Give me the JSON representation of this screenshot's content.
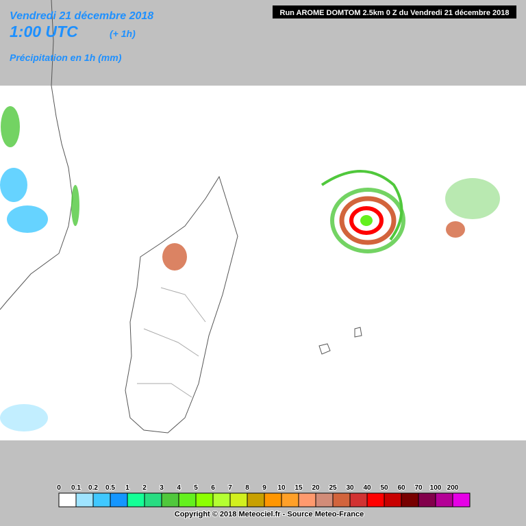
{
  "header": {
    "date": "Vendredi 21 décembre 2018",
    "time": "1:00 UTC",
    "offset": "(+ 1h)",
    "product": "Précipitation en 1h (mm)"
  },
  "run": "Run AROME DOMTOM 2.5km 0 Z du Vendredi 21 décembre 2018",
  "legend": [
    {
      "label": "0",
      "color": "#ffffff"
    },
    {
      "label": "0.1",
      "color": "#9fe4ff"
    },
    {
      "label": "0.2",
      "color": "#40c8ff"
    },
    {
      "label": "0.5",
      "color": "#1496ff"
    },
    {
      "label": "1",
      "color": "#14ff96"
    },
    {
      "label": "2",
      "color": "#28dc82"
    },
    {
      "label": "3",
      "color": "#50c83c"
    },
    {
      "label": "4",
      "color": "#64f01e"
    },
    {
      "label": "5",
      "color": "#8cff00"
    },
    {
      "label": "6",
      "color": "#b4ff32"
    },
    {
      "label": "7",
      "color": "#d2f01e"
    },
    {
      "label": "8",
      "color": "#c8a000"
    },
    {
      "label": "9",
      "color": "#ff9600"
    },
    {
      "label": "10",
      "color": "#ffa028"
    },
    {
      "label": "15",
      "color": "#ff9a6e"
    },
    {
      "label": "20",
      "color": "#d28c78"
    },
    {
      "label": "25",
      "color": "#d2643c"
    },
    {
      "label": "30",
      "color": "#d23232"
    },
    {
      "label": "40",
      "color": "#ff0000"
    },
    {
      "label": "50",
      "color": "#c80000"
    },
    {
      "label": "60",
      "color": "#780000"
    },
    {
      "label": "70",
      "color": "#82004b"
    },
    {
      "label": "100",
      "color": "#b40096"
    },
    {
      "label": "200",
      "color": "#e600e6"
    }
  ],
  "copyright": "Copyright © 2018 Meteociel.fr - Source Meteo-France"
}
